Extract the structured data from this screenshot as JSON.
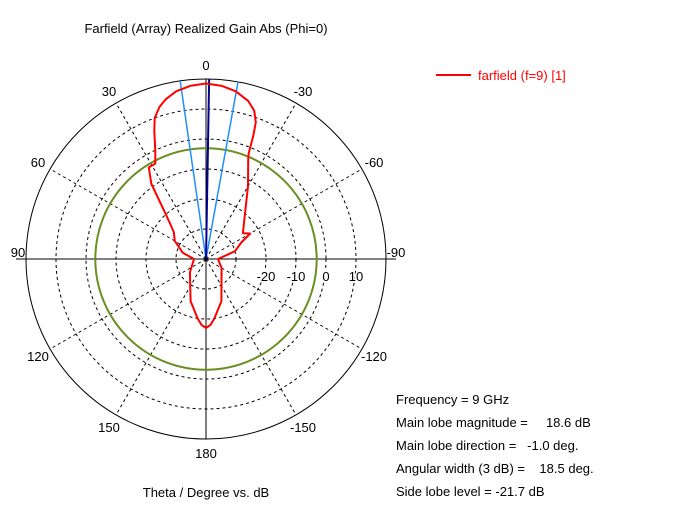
{
  "chart_data": {
    "type": "polar",
    "title": "Farfield (Array) Realized Gain Abs (Phi=0)",
    "xlabel": "Theta / Degree vs. dB",
    "radial_unit": "dB",
    "radial_range": [
      -40,
      20
    ],
    "radial_tick_labels": [
      "-20",
      "-10",
      "0",
      "10"
    ],
    "grid": true,
    "angle_tick_labels": [
      {
        "angle": 0,
        "label": "0"
      },
      {
        "angle": 30,
        "label": "30"
      },
      {
        "angle": 60,
        "label": "60"
      },
      {
        "angle": 90,
        "label": "90"
      },
      {
        "angle": 120,
        "label": "120"
      },
      {
        "angle": 150,
        "label": "150"
      },
      {
        "angle": 180,
        "label": "180"
      },
      {
        "angle": -30,
        "label": "-30"
      },
      {
        "angle": -60,
        "label": "-60"
      },
      {
        "angle": -90,
        "label": "-90"
      },
      {
        "angle": -120,
        "label": "-120"
      },
      {
        "angle": -150,
        "label": "-150"
      }
    ],
    "legend_position": "top-right",
    "series": [
      {
        "name": "farfield (f=9) [1]",
        "color": "#ff0000",
        "points": [
          {
            "theta": 0,
            "r": 18.5
          },
          {
            "theta": -5,
            "r": 18.0
          },
          {
            "theta": -10,
            "r": 16.8
          },
          {
            "theta": -15,
            "r": 14.5
          },
          {
            "theta": -18,
            "r": 12.0
          },
          {
            "theta": -20,
            "r": 8.5
          },
          {
            "theta": -21,
            "r": 4.0
          },
          {
            "theta": -22,
            "r": -2.0
          },
          {
            "theta": -23,
            "r": -4.0
          },
          {
            "theta": -30,
            "r": -12.0
          },
          {
            "theta": -45,
            "r": -22.0
          },
          {
            "theta": -55,
            "r": -25.0
          },
          {
            "theta": -60,
            "r": -23.0
          },
          {
            "theta": -65,
            "r": -27.0
          },
          {
            "theta": -75,
            "r": -30.0
          },
          {
            "theta": -90,
            "r": -36.0
          },
          {
            "theta": -120,
            "r": -34.0
          },
          {
            "theta": -160,
            "r": -25.0
          },
          {
            "theta": -172,
            "r": -20.0
          },
          {
            "theta": -176,
            "r": -18.0
          },
          {
            "theta": 180,
            "r": -17.0
          },
          {
            "theta": 176,
            "r": -18.0
          },
          {
            "theta": 172,
            "r": -20.0
          },
          {
            "theta": 160,
            "r": -25.0
          },
          {
            "theta": 130,
            "r": -33.0
          },
          {
            "theta": 90,
            "r": -36.0
          },
          {
            "theta": 75,
            "r": -32.0
          },
          {
            "theta": 60,
            "r": -28.0
          },
          {
            "theta": 50,
            "r": -26.0
          },
          {
            "theta": 42,
            "r": -20.0
          },
          {
            "theta": 36,
            "r": -9.0
          },
          {
            "theta": 32,
            "r": -4.0
          },
          {
            "theta": 28,
            "r": -4.0
          },
          {
            "theta": 25,
            "r": 0.0
          },
          {
            "theta": 22,
            "r": 6.0
          },
          {
            "theta": 20,
            "r": 10.0
          },
          {
            "theta": 17,
            "r": 13.0
          },
          {
            "theta": 14,
            "r": 15.0
          },
          {
            "theta": 10,
            "r": 16.8
          },
          {
            "theta": 5,
            "r": 18.0
          },
          {
            "theta": 0,
            "r": 18.5
          }
        ]
      }
    ],
    "main_lobe_direction_line": {
      "theta": -1.0,
      "color": "#00008b"
    },
    "beamwidth_lines": [
      {
        "theta": 8.25,
        "color": "#1e90ff"
      },
      {
        "theta": -10.25,
        "color": "#1e90ff"
      }
    ],
    "side_lobe_level_circle": {
      "r": -3.1,
      "color": "#6b8e23"
    }
  },
  "info": {
    "frequency": "Frequency = 9 GHz",
    "main_lobe_magnitude": "Main lobe magnitude =     18.6 dB",
    "main_lobe_direction": "Main lobe direction =   -1.0 deg.",
    "angular_width": "Angular width (3 dB) =    18.5 deg.",
    "side_lobe_level": "Side lobe level = -21.7 dB"
  }
}
